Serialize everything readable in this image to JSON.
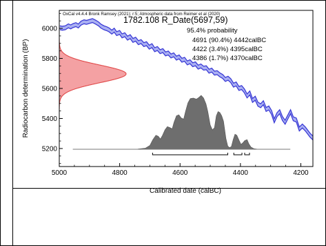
{
  "chart_data": {
    "type": "area",
    "software_note": "OxCal v4.4.4 Bronk Ramsey (2021); r:5; Atmospheric data from Reimer et al (2020)",
    "title": "1782.108 R_Date(5697,59)",
    "xlabel": "Calibrated date (calBC)",
    "ylabel": "Radiocarbon determination (BP)",
    "xlim": [
      5000,
      4160
    ],
    "ylim": [
      5080,
      6120
    ],
    "x_ticks": [
      5000,
      4800,
      4600,
      4400,
      4200
    ],
    "y_ticks": [
      5200,
      5400,
      5600,
      5800,
      6000
    ],
    "probability_heading": "95.4% probability",
    "ranges": [
      {
        "label": "4691 (90.4%) 4442calBC",
        "from": 4691,
        "to": 4442
      },
      {
        "label": "4422 (3.4%) 4395calBC",
        "from": 4422,
        "to": 4395
      },
      {
        "label": "4386 (1.7%) 4370calBC",
        "from": 4386,
        "to": 4370
      }
    ],
    "measurement": {
      "mean_bp": 5697,
      "sigma": 59
    },
    "calibration_curve": {
      "name": "IntCal20",
      "color": "#3b3bd6",
      "fill": "#aab0f2",
      "band_width": 26,
      "points": [
        [
          4998,
          6004
        ],
        [
          4990,
          6001
        ],
        [
          4980,
          6004
        ],
        [
          4970,
          6017
        ],
        [
          4962,
          6010
        ],
        [
          4955,
          6018
        ],
        [
          4945,
          6025
        ],
        [
          4937,
          6016
        ],
        [
          4928,
          6035
        ],
        [
          4918,
          6044
        ],
        [
          4910,
          6040
        ],
        [
          4900,
          6046
        ],
        [
          4890,
          6052
        ],
        [
          4880,
          6042
        ],
        [
          4870,
          6030
        ],
        [
          4862,
          6015
        ],
        [
          4852,
          6004
        ],
        [
          4843,
          5998
        ],
        [
          4835,
          5990
        ],
        [
          4826,
          5975
        ],
        [
          4818,
          5988
        ],
        [
          4810,
          5965
        ],
        [
          4800,
          5973
        ],
        [
          4792,
          5950
        ],
        [
          4783,
          5958
        ],
        [
          4774,
          5935
        ],
        [
          4765,
          5945
        ],
        [
          4756,
          5920
        ],
        [
          4747,
          5928
        ],
        [
          4738,
          5905
        ],
        [
          4729,
          5912
        ],
        [
          4720,
          5892
        ],
        [
          4711,
          5898
        ],
        [
          4702,
          5875
        ],
        [
          4693,
          5885
        ],
        [
          4684,
          5858
        ],
        [
          4675,
          5866
        ],
        [
          4666,
          5845
        ],
        [
          4657,
          5852
        ],
        [
          4648,
          5830
        ],
        [
          4639,
          5836
        ],
        [
          4630,
          5816
        ],
        [
          4621,
          5824
        ],
        [
          4612,
          5802
        ],
        [
          4603,
          5810
        ],
        [
          4594,
          5788
        ],
        [
          4585,
          5794
        ],
        [
          4576,
          5770
        ],
        [
          4567,
          5778
        ],
        [
          4558,
          5758
        ],
        [
          4549,
          5764
        ],
        [
          4540,
          5742
        ],
        [
          4531,
          5750
        ],
        [
          4522,
          5735
        ],
        [
          4513,
          5738
        ],
        [
          4504,
          5715
        ],
        [
          4495,
          5722
        ],
        [
          4486,
          5702
        ],
        [
          4477,
          5705
        ],
        [
          4468,
          5690
        ],
        [
          4459,
          5680
        ],
        [
          4450,
          5660
        ],
        [
          4441,
          5668
        ],
        [
          4432,
          5652
        ],
        [
          4423,
          5622
        ],
        [
          4414,
          5630
        ],
        [
          4405,
          5600
        ],
        [
          4396,
          5606
        ],
        [
          4387,
          5584
        ],
        [
          4378,
          5550
        ],
        [
          4369,
          5570
        ],
        [
          4360,
          5520
        ],
        [
          4351,
          5535
        ],
        [
          4342,
          5495
        ],
        [
          4333,
          5485
        ],
        [
          4324,
          5505
        ],
        [
          4315,
          5460
        ],
        [
          4306,
          5470
        ],
        [
          4297,
          5440
        ],
        [
          4288,
          5385
        ],
        [
          4279,
          5425
        ],
        [
          4270,
          5445
        ],
        [
          4261,
          5400
        ],
        [
          4252,
          5375
        ],
        [
          4243,
          5410
        ],
        [
          4234,
          5445
        ],
        [
          4225,
          5398
        ],
        [
          4215,
          5390
        ],
        [
          4205,
          5330
        ],
        [
          4195,
          5350
        ],
        [
          4185,
          5330
        ],
        [
          4170,
          5290
        ],
        [
          4160,
          5270
        ]
      ]
    },
    "measurement_curve": {
      "color": "#e04848",
      "fill": "#f4a1a3"
    },
    "calibrated_distribution": {
      "color": "#777777",
      "baseline_x_range": [
        4955,
        4235
      ],
      "baseline_bp": 5195,
      "points": [
        [
          4955,
          0
        ],
        [
          4800,
          0
        ],
        [
          4740,
          0.005
        ],
        [
          4715,
          0.02
        ],
        [
          4700,
          0.07
        ],
        [
          4690,
          0.18
        ],
        [
          4680,
          0.26
        ],
        [
          4672,
          0.24
        ],
        [
          4665,
          0.19
        ],
        [
          4658,
          0.26
        ],
        [
          4650,
          0.36
        ],
        [
          4642,
          0.42
        ],
        [
          4633,
          0.4
        ],
        [
          4626,
          0.38
        ],
        [
          4620,
          0.5
        ],
        [
          4612,
          0.62
        ],
        [
          4604,
          0.64
        ],
        [
          4596,
          0.58
        ],
        [
          4588,
          0.56
        ],
        [
          4582,
          0.7
        ],
        [
          4574,
          0.86
        ],
        [
          4566,
          0.94
        ],
        [
          4556,
          0.95
        ],
        [
          4546,
          0.93
        ],
        [
          4538,
          0.96
        ],
        [
          4530,
          1.0
        ],
        [
          4522,
          0.95
        ],
        [
          4514,
          0.84
        ],
        [
          4508,
          0.7
        ],
        [
          4500,
          0.45
        ],
        [
          4493,
          0.36
        ],
        [
          4486,
          0.4
        ],
        [
          4480,
          0.62
        ],
        [
          4474,
          0.7
        ],
        [
          4468,
          0.68
        ],
        [
          4462,
          0.62
        ],
        [
          4456,
          0.52
        ],
        [
          4448,
          0.2
        ],
        [
          4442,
          0.06
        ],
        [
          4436,
          0.03
        ],
        [
          4430,
          0.05
        ],
        [
          4424,
          0.18
        ],
        [
          4418,
          0.28
        ],
        [
          4412,
          0.26
        ],
        [
          4404,
          0.16
        ],
        [
          4398,
          0.09
        ],
        [
          4392,
          0.12
        ],
        [
          4386,
          0.16
        ],
        [
          4378,
          0.18
        ],
        [
          4372,
          0.1
        ],
        [
          4365,
          0.04
        ],
        [
          4355,
          0.01
        ],
        [
          4340,
          0.0
        ],
        [
          4235,
          0
        ]
      ]
    }
  }
}
